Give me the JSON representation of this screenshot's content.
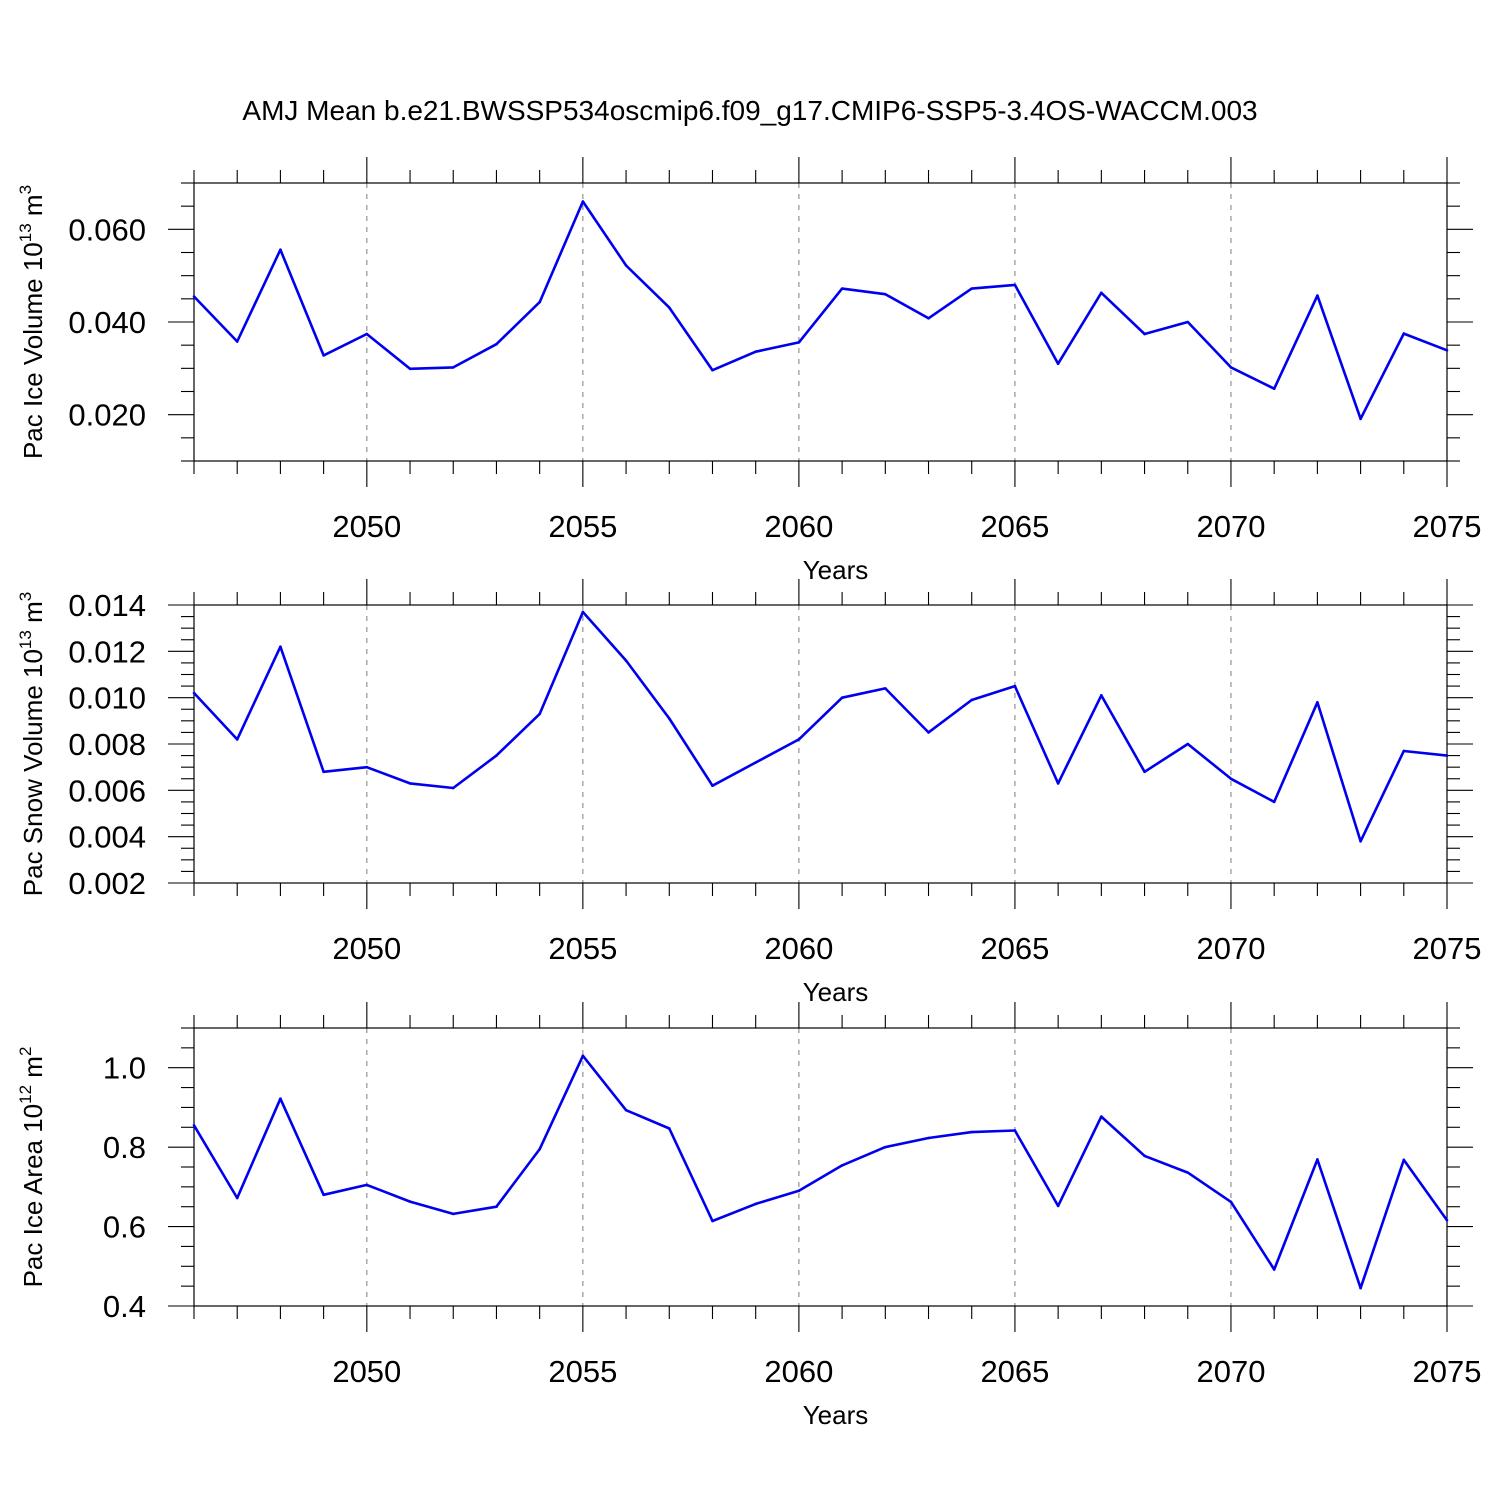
{
  "figure_title": "AMJ Mean b.e21.BWSSP534oscmip6.f09_g17.CMIP6-SSP5-3.4OS-WACCM.003",
  "colors": {
    "series": "#0000ee",
    "grid": "#888888"
  },
  "chart_data": [
    {
      "type": "line",
      "title": "",
      "xlabel": "Years",
      "ylabel_main": "Pac Ice Volume 10",
      "ylabel_exp": "13",
      "ylabel_unit": " m",
      "ylabel_unit_exp": "3",
      "xlim": [
        2046,
        2075
      ],
      "ylim": [
        0.01,
        0.07
      ],
      "x_ticks": [
        2050,
        2055,
        2060,
        2065,
        2070,
        2075
      ],
      "x_tick_labels": [
        "2050",
        "2055",
        "2060",
        "2065",
        "2070",
        "2075"
      ],
      "y_ticks": [
        0.02,
        0.04,
        0.06
      ],
      "y_tick_labels": [
        "0.020",
        "0.040",
        "0.060"
      ],
      "y_minor_step": 0.005,
      "grid": "vertical-dashed",
      "x": [
        2046,
        2047,
        2048,
        2049,
        2050,
        2051,
        2052,
        2053,
        2054,
        2055,
        2056,
        2057,
        2058,
        2059,
        2060,
        2061,
        2062,
        2063,
        2064,
        2065,
        2066,
        2067,
        2068,
        2069,
        2070,
        2071,
        2072,
        2073,
        2074,
        2075
      ],
      "series": [
        {
          "values": [
            0.0455,
            0.0358,
            0.0556,
            0.0328,
            0.0374,
            0.0299,
            0.0302,
            0.0352,
            0.0443,
            0.066,
            0.0522,
            0.0431,
            0.0296,
            0.0336,
            0.0356,
            0.0472,
            0.046,
            0.0408,
            0.0472,
            0.048,
            0.031,
            0.0463,
            0.0374,
            0.04,
            0.0302,
            0.0256,
            0.0457,
            0.0191,
            0.0375,
            0.0339
          ]
        }
      ]
    },
    {
      "type": "line",
      "title": "",
      "xlabel": "Years",
      "ylabel_main": "Pac Snow Volume 10",
      "ylabel_exp": "13",
      "ylabel_unit": " m",
      "ylabel_unit_exp": "3",
      "xlim": [
        2046,
        2075
      ],
      "ylim": [
        0.002,
        0.014
      ],
      "x_ticks": [
        2050,
        2055,
        2060,
        2065,
        2070,
        2075
      ],
      "x_tick_labels": [
        "2050",
        "2055",
        "2060",
        "2065",
        "2070",
        "2075"
      ],
      "y_ticks": [
        0.002,
        0.004,
        0.006,
        0.008,
        0.01,
        0.012,
        0.014
      ],
      "y_tick_labels": [
        "0.002",
        "0.004",
        "0.006",
        "0.008",
        "0.010",
        "0.012",
        "0.014"
      ],
      "y_minor_step": 0.0005,
      "grid": "vertical-dashed",
      "x": [
        2046,
        2047,
        2048,
        2049,
        2050,
        2051,
        2052,
        2053,
        2054,
        2055,
        2056,
        2057,
        2058,
        2059,
        2060,
        2061,
        2062,
        2063,
        2064,
        2065,
        2066,
        2067,
        2068,
        2069,
        2070,
        2071,
        2072,
        2073,
        2074,
        2075
      ],
      "series": [
        {
          "values": [
            0.0102,
            0.0082,
            0.0122,
            0.0068,
            0.007,
            0.0063,
            0.0061,
            0.0075,
            0.0093,
            0.0137,
            0.0116,
            0.0091,
            0.0062,
            0.0072,
            0.0082,
            0.01,
            0.0104,
            0.0085,
            0.0099,
            0.0105,
            0.0063,
            0.0101,
            0.0068,
            0.008,
            0.0065,
            0.0055,
            0.0098,
            0.0038,
            0.0077,
            0.0075
          ]
        }
      ]
    },
    {
      "type": "line",
      "title": "",
      "xlabel": "Years",
      "ylabel_main": "Pac Ice Area 10",
      "ylabel_exp": "12",
      "ylabel_unit": " m",
      "ylabel_unit_exp": "2",
      "xlim": [
        2046,
        2075
      ],
      "ylim": [
        0.4,
        1.1
      ],
      "x_ticks": [
        2050,
        2055,
        2060,
        2065,
        2070,
        2075
      ],
      "x_tick_labels": [
        "2050",
        "2055",
        "2060",
        "2065",
        "2070",
        "2075"
      ],
      "y_ticks": [
        0.4,
        0.6,
        0.8,
        1.0
      ],
      "y_tick_labels": [
        "0.4",
        "0.6",
        "0.8",
        "1.0"
      ],
      "y_minor_step": 0.05,
      "grid": "vertical-dashed",
      "x": [
        2046,
        2047,
        2048,
        2049,
        2050,
        2051,
        2052,
        2053,
        2054,
        2055,
        2056,
        2057,
        2058,
        2059,
        2060,
        2061,
        2062,
        2063,
        2064,
        2065,
        2066,
        2067,
        2068,
        2069,
        2070,
        2071,
        2072,
        2073,
        2074,
        2075
      ],
      "series": [
        {
          "values": [
            0.855,
            0.672,
            0.922,
            0.68,
            0.705,
            0.663,
            0.632,
            0.65,
            0.795,
            1.03,
            0.893,
            0.847,
            0.614,
            0.657,
            0.69,
            0.754,
            0.8,
            0.823,
            0.838,
            0.842,
            0.652,
            0.877,
            0.778,
            0.736,
            0.662,
            0.492,
            0.769,
            0.445,
            0.768,
            0.616
          ]
        }
      ]
    }
  ]
}
